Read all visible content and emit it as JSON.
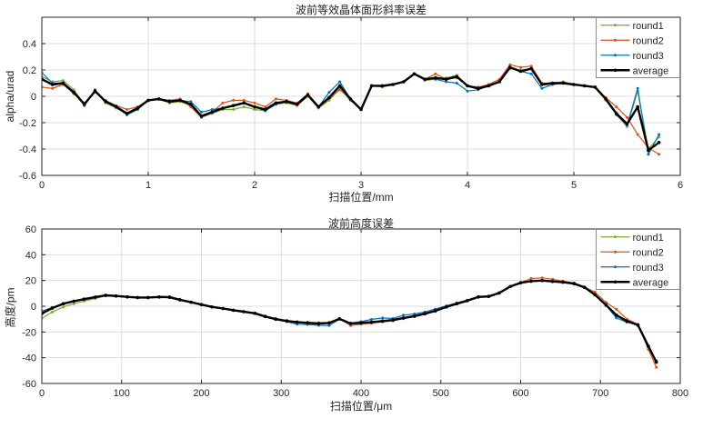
{
  "figure": {
    "background": "#ffffff",
    "axis_color": "#262626",
    "grid_color": "#dcdcdc",
    "legend_border": "#8c8c8c"
  },
  "chart_data": [
    {
      "type": "line",
      "title": "波前等效晶体面形斜率误差",
      "xlabel": "扫描位置/mm",
      "ylabel": "alpha/urad",
      "xlim": [
        0,
        6
      ],
      "ylim": [
        -0.6,
        0.6
      ],
      "xticks": [
        0,
        1,
        2,
        3,
        4,
        5,
        6
      ],
      "xtick_labels": [
        "0",
        "1",
        "2",
        "3",
        "4",
        "5",
        "6"
      ],
      "yticks": [
        -0.6,
        -0.4,
        -0.2,
        0,
        0.2,
        0.4
      ],
      "ytick_labels": [
        "-0.6",
        "-0.4",
        "-0.2",
        "0",
        "0.2",
        "0.4"
      ],
      "grid": true,
      "legend_position": "top-right",
      "x": [
        0,
        0.1,
        0.2,
        0.3,
        0.4,
        0.5,
        0.6,
        0.7,
        0.8,
        0.9,
        1,
        1.1,
        1.2,
        1.3,
        1.4,
        1.5,
        1.6,
        1.7,
        1.8,
        1.9,
        2,
        2.1,
        2.2,
        2.3,
        2.4,
        2.5,
        2.6,
        2.7,
        2.8,
        2.9,
        3,
        3.1,
        3.2,
        3.3,
        3.4,
        3.5,
        3.6,
        3.7,
        3.8,
        3.9,
        4,
        4.1,
        4.2,
        4.3,
        4.4,
        4.5,
        4.6,
        4.7,
        4.8,
        4.9,
        5,
        5.1,
        5.2,
        5.3,
        5.4,
        5.5,
        5.6,
        5.7,
        5.8
      ],
      "series": [
        {
          "name": "round1",
          "color": "#77AC30",
          "line_width": 1.2,
          "marker": "dot",
          "values": [
            0.15,
            0.11,
            0.12,
            0.05,
            -0.06,
            0.04,
            -0.05,
            -0.09,
            -0.14,
            -0.1,
            -0.03,
            -0.02,
            -0.05,
            -0.04,
            -0.07,
            -0.16,
            -0.13,
            -0.1,
            -0.1,
            -0.08,
            -0.1,
            -0.11,
            -0.06,
            -0.05,
            -0.07,
            0.0,
            -0.09,
            -0.03,
            0.06,
            -0.03,
            -0.1,
            0.08,
            0.07,
            0.09,
            0.11,
            0.17,
            0.12,
            0.13,
            0.14,
            0.16,
            0.08,
            0.06,
            0.08,
            0.11,
            0.21,
            0.2,
            0.21,
            0.09,
            0.1,
            0.1,
            0.09,
            0.08,
            0.07,
            -0.03,
            -0.14,
            -0.23,
            0.04,
            -0.4,
            -0.31
          ]
        },
        {
          "name": "round2",
          "color": "#D95319",
          "line_width": 1.2,
          "marker": "dot",
          "values": [
            0.07,
            0.06,
            0.09,
            0.02,
            -0.05,
            0.03,
            -0.03,
            -0.07,
            -0.1,
            -0.08,
            -0.03,
            -0.02,
            -0.03,
            -0.02,
            -0.08,
            -0.16,
            -0.12,
            -0.05,
            -0.03,
            -0.03,
            -0.05,
            -0.08,
            -0.02,
            -0.03,
            -0.05,
            0.02,
            -0.08,
            -0.02,
            0.05,
            -0.02,
            -0.1,
            0.08,
            0.08,
            0.09,
            0.11,
            0.17,
            0.13,
            0.17,
            0.13,
            0.14,
            0.08,
            0.07,
            0.09,
            0.13,
            0.24,
            0.22,
            0.23,
            0.1,
            0.1,
            0.11,
            0.09,
            0.08,
            0.07,
            -0.01,
            -0.08,
            -0.16,
            -0.29,
            -0.39,
            -0.44
          ]
        },
        {
          "name": "round3",
          "color": "#0072BD",
          "line_width": 1.2,
          "marker": "dot",
          "values": [
            0.18,
            0.1,
            0.1,
            0.03,
            -0.07,
            0.05,
            -0.04,
            -0.08,
            -0.14,
            -0.1,
            -0.03,
            -0.02,
            -0.04,
            -0.03,
            -0.04,
            -0.12,
            -0.1,
            -0.09,
            -0.07,
            -0.05,
            -0.08,
            -0.11,
            -0.06,
            -0.04,
            -0.06,
            0.01,
            -0.08,
            0.03,
            0.11,
            -0.02,
            -0.1,
            0.08,
            0.08,
            0.09,
            0.11,
            0.17,
            0.13,
            0.13,
            0.11,
            0.1,
            0.04,
            0.05,
            0.08,
            0.11,
            0.22,
            0.19,
            0.17,
            0.06,
            0.09,
            0.1,
            0.09,
            0.08,
            0.07,
            -0.02,
            -0.14,
            -0.22,
            0.06,
            -0.44,
            -0.29
          ]
        },
        {
          "name": "average",
          "color": "#000000",
          "line_width": 2.4,
          "marker": "dot",
          "values": [
            0.13,
            0.09,
            0.1,
            0.03,
            -0.06,
            0.04,
            -0.04,
            -0.08,
            -0.13,
            -0.09,
            -0.03,
            -0.02,
            -0.04,
            -0.03,
            -0.06,
            -0.15,
            -0.12,
            -0.09,
            -0.07,
            -0.05,
            -0.08,
            -0.1,
            -0.05,
            -0.04,
            -0.06,
            0.01,
            -0.08,
            -0.01,
            0.08,
            -0.02,
            -0.1,
            0.08,
            0.08,
            0.09,
            0.11,
            0.17,
            0.13,
            0.14,
            0.13,
            0.15,
            0.08,
            0.06,
            0.08,
            0.11,
            0.22,
            0.19,
            0.21,
            0.09,
            0.1,
            0.1,
            0.09,
            0.08,
            0.07,
            -0.02,
            -0.13,
            -0.21,
            -0.08,
            -0.41,
            -0.35
          ]
        }
      ]
    },
    {
      "type": "line",
      "title": "波前高度误差",
      "xlabel": "扫描位置/μm",
      "ylabel": "高度/pm",
      "xlim": [
        0,
        800
      ],
      "ylim": [
        -60,
        60
      ],
      "xticks": [
        0,
        100,
        200,
        300,
        400,
        500,
        600,
        700,
        800
      ],
      "xtick_labels": [
        "0",
        "100",
        "200",
        "300",
        "400",
        "500",
        "600",
        "700",
        "800"
      ],
      "yticks": [
        -60,
        -40,
        -20,
        0,
        20,
        40,
        60
      ],
      "ytick_labels": [
        "-60",
        "-40",
        "-20",
        "0",
        "20",
        "40",
        "60"
      ],
      "grid": true,
      "legend_position": "top-right",
      "x": [
        0,
        13,
        27,
        40,
        53,
        67,
        80,
        93,
        107,
        120,
        133,
        147,
        160,
        173,
        187,
        200,
        213,
        227,
        240,
        253,
        267,
        280,
        293,
        307,
        320,
        333,
        347,
        360,
        373,
        387,
        400,
        413,
        427,
        440,
        453,
        467,
        480,
        493,
        507,
        520,
        533,
        547,
        560,
        573,
        587,
        600,
        613,
        627,
        640,
        653,
        667,
        680,
        693,
        707,
        720,
        733,
        747,
        760,
        770
      ],
      "series": [
        {
          "name": "round1",
          "color": "#77AC30",
          "line_width": 1.2,
          "marker": "dot",
          "values": [
            -9.4,
            -4.5,
            -0.5,
            2.0,
            4.0,
            6.0,
            8.0,
            7.7,
            7.0,
            6.5,
            6.6,
            7.5,
            7.6,
            5.5,
            3.0,
            1.2,
            -0.6,
            -1.9,
            -3.2,
            -4.3,
            -5.6,
            -8.1,
            -10.1,
            -11.6,
            -12.5,
            -13.0,
            -13.6,
            -13.1,
            -9.9,
            -13.6,
            -13.0,
            -12.5,
            -11.6,
            -10.8,
            -9.2,
            -7.7,
            -5.9,
            -3.7,
            -0.6,
            1.9,
            4.1,
            7.1,
            7.5,
            10.0,
            15.1,
            18.0,
            19.3,
            19.8,
            19.1,
            18.5,
            17.4,
            14.5,
            8.8,
            0.7,
            -7.1,
            -11.7,
            -14.9,
            -30.5,
            -42.5
          ]
        },
        {
          "name": "round2",
          "color": "#D95319",
          "line_width": 1.2,
          "marker": "dot",
          "values": [
            -4.0,
            -1.0,
            2.2,
            4.1,
            5.7,
            7.3,
            8.6,
            8.1,
            7.4,
            6.9,
            6.9,
            7.0,
            6.8,
            4.8,
            3.0,
            1.4,
            -0.4,
            -1.7,
            -3.0,
            -4.0,
            -5.2,
            -7.6,
            -9.5,
            -11.0,
            -12.0,
            -12.5,
            -12.8,
            -12.6,
            -9.5,
            -15.0,
            -14.0,
            -13.2,
            -12.2,
            -11.3,
            -9.7,
            -8.2,
            -6.3,
            -4.0,
            -0.8,
            1.8,
            4.0,
            7.0,
            7.4,
            10.0,
            15.5,
            18.5,
            21.5,
            22.0,
            21.0,
            19.5,
            18.0,
            15.0,
            11.0,
            3.0,
            -2.4,
            -10.0,
            -14.0,
            -33.5,
            -47.5
          ]
        },
        {
          "name": "round3",
          "color": "#0072BD",
          "line_width": 1.2,
          "marker": "dot",
          "values": [
            -3.8,
            -1.0,
            1.8,
            3.7,
            5.3,
            6.9,
            8.3,
            7.8,
            7.1,
            6.6,
            6.6,
            7.0,
            6.7,
            4.7,
            3.2,
            1.4,
            -0.5,
            -1.8,
            -3.1,
            -4.2,
            -5.6,
            -8.2,
            -10.4,
            -12.0,
            -14.0,
            -14.2,
            -14.8,
            -15.0,
            -10.0,
            -13.0,
            -12.0,
            -10.2,
            -9.1,
            -9.5,
            -6.9,
            -6.0,
            -4.5,
            -2.2,
            0.3,
            2.6,
            4.8,
            7.6,
            8.0,
            10.6,
            15.4,
            18.1,
            19.2,
            19.7,
            19.0,
            18.4,
            17.3,
            14.4,
            8.6,
            0.5,
            -9.1,
            -12.4,
            -14.5,
            -31.5,
            -42.4
          ]
        },
        {
          "name": "average",
          "color": "#000000",
          "line_width": 2.4,
          "marker": "dot",
          "values": [
            -5.7,
            -1.5,
            2.0,
            3.9,
            5.5,
            7.1,
            8.5,
            8.0,
            7.3,
            6.8,
            6.8,
            7.2,
            7.0,
            5.0,
            3.1,
            1.3,
            -0.5,
            -1.8,
            -3.1,
            -4.2,
            -5.5,
            -8.0,
            -10.0,
            -11.5,
            -12.4,
            -12.9,
            -13.5,
            -13.0,
            -9.8,
            -13.5,
            -12.9,
            -12.4,
            -11.5,
            -10.7,
            -9.1,
            -7.6,
            -5.8,
            -3.6,
            -0.5,
            2.0,
            4.2,
            7.2,
            7.6,
            10.2,
            15.3,
            18.2,
            19.5,
            20.0,
            19.3,
            18.7,
            17.6,
            14.7,
            9.0,
            0.9,
            -6.9,
            -11.5,
            -14.7,
            -31.0,
            -43.5
          ]
        }
      ]
    }
  ]
}
